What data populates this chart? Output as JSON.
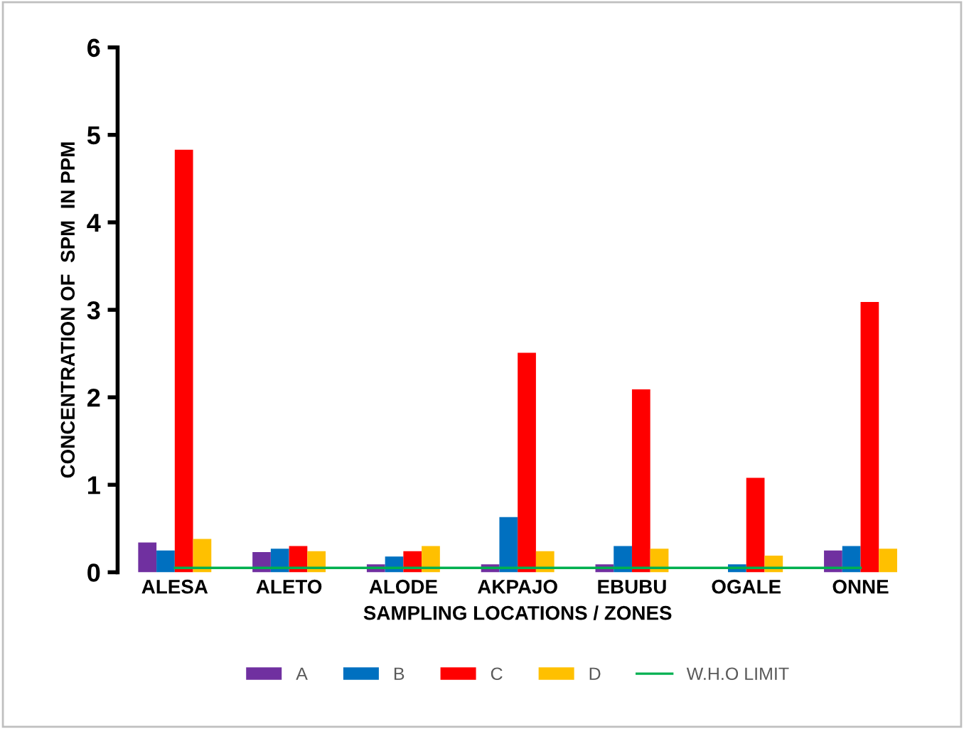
{
  "chart_data": {
    "type": "bar",
    "xlabel": "SAMPLING LOCATIONS / ZONES",
    "ylabel": "CONCENTRATION OF  SPM  IN PPM",
    "categories": [
      "ALESA",
      "ALETO",
      "ALODE",
      "AKPAJO",
      "EBUBU",
      "OGALE",
      "ONNE"
    ],
    "series": [
      {
        "name": "A",
        "color": "#7030a0",
        "values": [
          0.34,
          0.23,
          0.09,
          0.09,
          0.09,
          0,
          0.25
        ]
      },
      {
        "name": "B",
        "color": "#0070c0",
        "values": [
          0.25,
          0.27,
          0.18,
          0.63,
          0.3,
          0.09,
          0.3
        ]
      },
      {
        "name": "C",
        "color": "#ff0000",
        "values": [
          4.83,
          0.3,
          0.24,
          2.51,
          2.09,
          1.08,
          3.09
        ]
      },
      {
        "name": "D",
        "color": "#ffc000",
        "values": [
          0.38,
          0.24,
          0.3,
          0.24,
          0.27,
          0.19,
          0.27
        ]
      },
      {
        "name": "W.H.O LIMIT",
        "type": "line",
        "color": "#00b050",
        "values": [
          0.05,
          0.05,
          0.05,
          0.05,
          0.05,
          0.05,
          0.05
        ]
      }
    ],
    "ylim": [
      0,
      6
    ],
    "yticks": [
      0,
      1,
      2,
      3,
      4,
      5,
      6
    ],
    "grid": false,
    "legend": "bottom"
  }
}
